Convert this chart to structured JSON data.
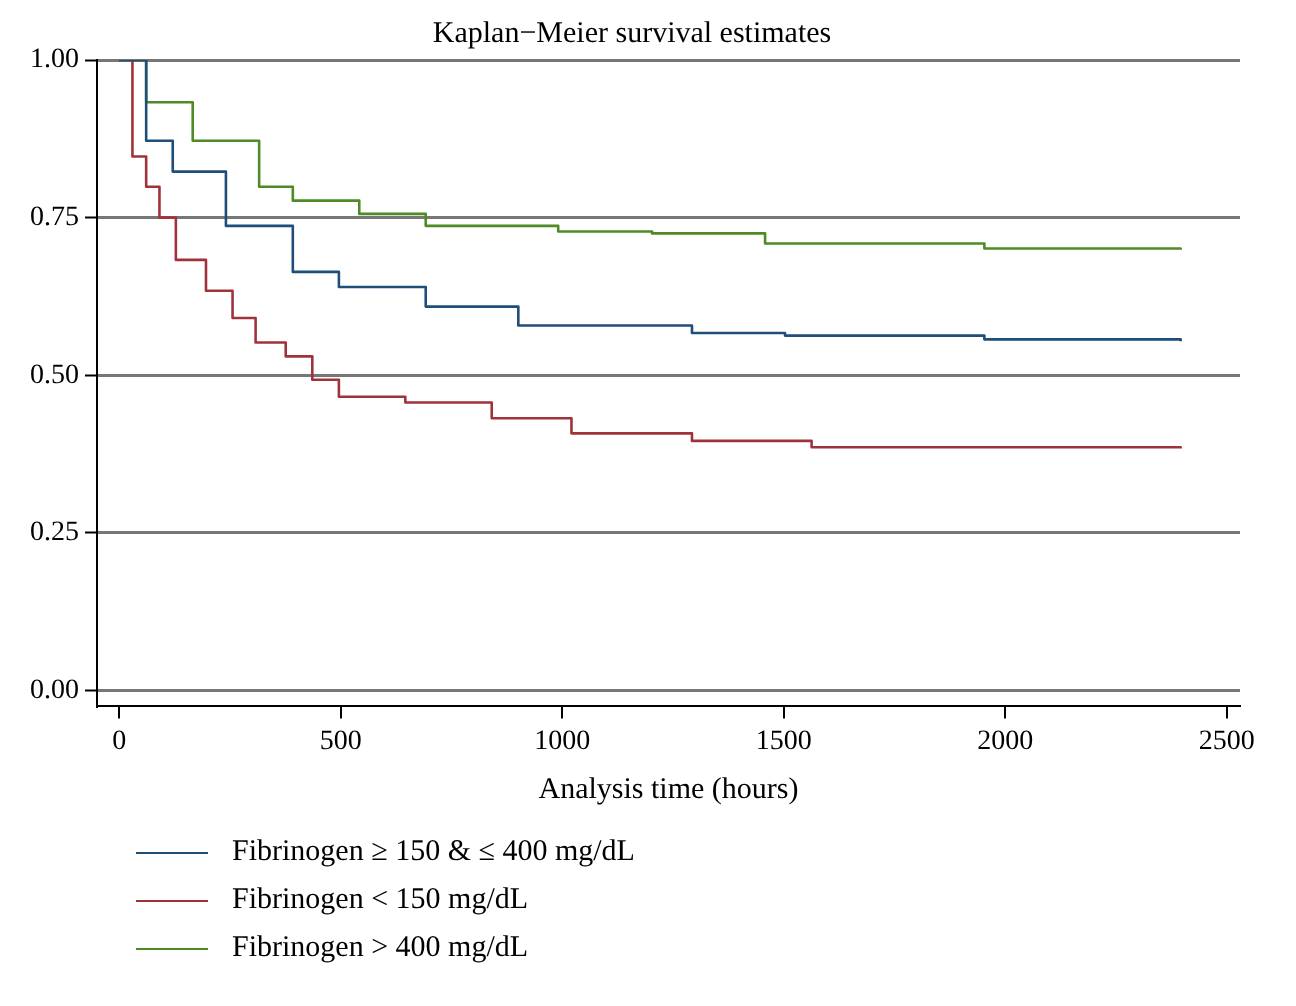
{
  "chart_data": {
    "type": "step",
    "title": "Kaplan−Meier survival estimates",
    "xlabel": "Analysis time (hours)",
    "xlim": [
      -50,
      2530
    ],
    "xticks": [
      0,
      500,
      1000,
      1500,
      2000,
      2500
    ],
    "ylim": [
      -0.025,
      1.0
    ],
    "yticks": [
      {
        "value": 0,
        "label": "0.00"
      },
      {
        "value": 0.25,
        "label": "0.25"
      },
      {
        "value": 0.5,
        "label": "0.50"
      },
      {
        "value": 0.75,
        "label": "0.75"
      },
      {
        "value": 1,
        "label": "1.00"
      }
    ],
    "grid": "y",
    "legend": "bottom",
    "line_style": "solid",
    "marker": "none",
    "series": [
      {
        "name": "Fibrinogen ≥ 150 & ≤ 400 mg/dL",
        "color": "#1f4e79",
        "x": [
          0,
          61,
          121,
          241,
          392,
          496,
          692,
          901,
          1293,
          1503,
          1953,
          2396
        ],
        "values": [
          1,
          0.872,
          0.823,
          0.737,
          0.664,
          0.64,
          0.609,
          0.579,
          0.567,
          0.563,
          0.557,
          0.554
        ]
      },
      {
        "name": "Fibrinogen < 150 mg/dL",
        "color": "#a0323c",
        "x": [
          0,
          30,
          61,
          91,
          128,
          196,
          256,
          308,
          376,
          436,
          496,
          646,
          841,
          1021,
          1293,
          1563,
          2396
        ],
        "values": [
          1,
          0.847,
          0.799,
          0.75,
          0.683,
          0.634,
          0.591,
          0.552,
          0.53,
          0.493,
          0.466,
          0.457,
          0.432,
          0.408,
          0.396,
          0.386,
          0.384
        ]
      },
      {
        "name": "Fibrinogen > 400 mg/dL",
        "color": "#4e8a26",
        "x": [
          0,
          61,
          166,
          316,
          392,
          542,
          692,
          991,
          1203,
          1458,
          1953,
          2396
        ],
        "values": [
          1,
          0.933,
          0.872,
          0.799,
          0.777,
          0.756,
          0.737,
          0.728,
          0.725,
          0.709,
          0.701,
          0.699
        ]
      }
    ]
  }
}
